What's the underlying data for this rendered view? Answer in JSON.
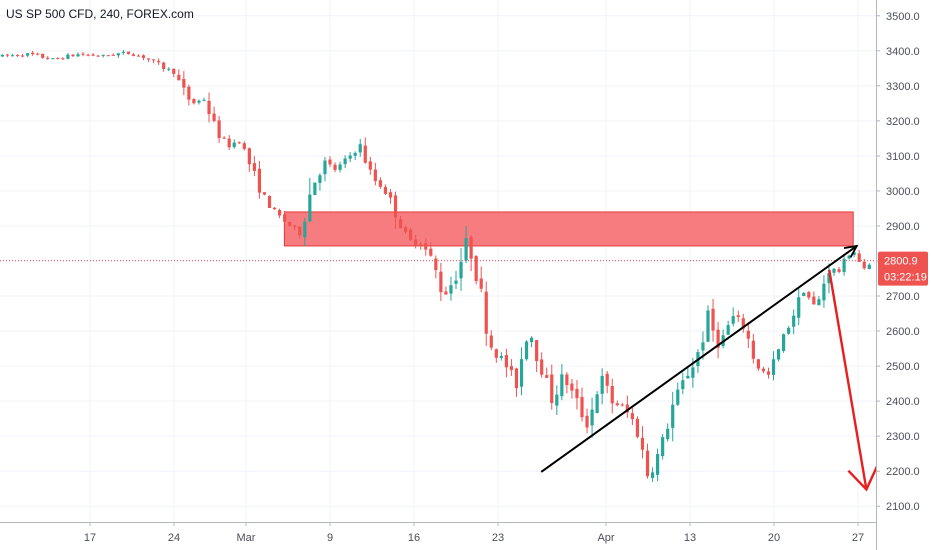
{
  "chart_data": {
    "type": "candlestick",
    "title": "US SP 500 CFD, 240, FOREX.com",
    "y_ticks": [
      3500,
      3400,
      3300,
      3200,
      3100,
      3000,
      2900,
      2800,
      2700,
      2600,
      2500,
      2400,
      2300,
      2200,
      2100
    ],
    "y_tick_labels": [
      "3500.0",
      "3400.0",
      "3300.0",
      "3200.0",
      "3100.0",
      "3000.0",
      "2900.0",
      "2800.0",
      "2700.0",
      "2600.0",
      "2500.0",
      "2400.0",
      "2300.0",
      "2200.0",
      "2100.0"
    ],
    "ylim": [
      2055,
      3545
    ],
    "x_tick_labels": [
      "17",
      "24",
      "Mar",
      "9",
      "16",
      "23",
      "Apr",
      "13",
      "20",
      "27"
    ],
    "x_range_days": [
      -2.5,
      70.5
    ],
    "x_tick_days": [
      5,
      12,
      18,
      25,
      32,
      39,
      48,
      55,
      62,
      69
    ],
    "ohlc_anchors": [
      [
        -2.5,
        3385
      ],
      [
        0,
        3390
      ],
      [
        2,
        3375
      ],
      [
        4,
        3390
      ],
      [
        6,
        3385
      ],
      [
        8,
        3395
      ],
      [
        9.5,
        3382
      ],
      [
        11,
        3355
      ],
      [
        12,
        3340
      ],
      [
        12.7,
        3290
      ],
      [
        13.5,
        3250
      ],
      [
        14.5,
        3262
      ],
      [
        15.5,
        3175
      ],
      [
        16.5,
        3130
      ],
      [
        17.5,
        3145
      ],
      [
        18.5,
        3060
      ],
      [
        19.5,
        2985
      ],
      [
        20.5,
        2935
      ],
      [
        21.5,
        2905
      ],
      [
        22.5,
        2880
      ],
      [
        23.5,
        3015
      ],
      [
        24.5,
        3080
      ],
      [
        25.5,
        3060
      ],
      [
        26.5,
        3095
      ],
      [
        27.5,
        3130
      ],
      [
        28.5,
        3040
      ],
      [
        29.5,
        3005
      ],
      [
        30.5,
        2940
      ],
      [
        31.5,
        2850
      ],
      [
        32.5,
        2860
      ],
      [
        33.5,
        2800
      ],
      [
        34.5,
        2700
      ],
      [
        35.5,
        2760
      ],
      [
        36.5,
        2860
      ],
      [
        37.5,
        2720
      ],
      [
        38.5,
        2550
      ],
      [
        39.5,
        2515
      ],
      [
        40.5,
        2445
      ],
      [
        41.5,
        2620
      ],
      [
        42.5,
        2505
      ],
      [
        43.5,
        2410
      ],
      [
        44.5,
        2470
      ],
      [
        45.5,
        2400
      ],
      [
        46.5,
        2330
      ],
      [
        47.5,
        2470
      ],
      [
        48.5,
        2400
      ],
      [
        49.5,
        2380
      ],
      [
        50.5,
        2330
      ],
      [
        51.5,
        2190
      ],
      [
        52.5,
        2255
      ],
      [
        53.5,
        2380
      ],
      [
        54.5,
        2460
      ],
      [
        55.5,
        2520
      ],
      [
        56.5,
        2630
      ],
      [
        57.5,
        2560
      ],
      [
        58.5,
        2640
      ],
      [
        59.5,
        2615
      ],
      [
        60.5,
        2505
      ],
      [
        61.5,
        2470
      ],
      [
        62.5,
        2555
      ],
      [
        63.5,
        2640
      ],
      [
        64.5,
        2720
      ],
      [
        65.5,
        2660
      ],
      [
        66.5,
        2780
      ],
      [
        67.5,
        2770
      ],
      [
        68.5,
        2840
      ],
      [
        69.5,
        2770
      ],
      [
        70.5,
        2810
      ]
    ],
    "resistance_zone": {
      "low": 2843,
      "high": 2940,
      "x_start_day": 21.2,
      "x_end_day": 68.6
    },
    "trendline": {
      "start_day": 42.6,
      "start_value": 2198,
      "end_day": 68.9,
      "end_value": 2843
    },
    "projection_arrow": {
      "start_day": 66.6,
      "start_value": 2775,
      "end_day": 69.7,
      "end_value": 2148
    },
    "current_price": 2800.9,
    "current_price_label": "2800.9",
    "countdown_label": "03:22:19",
    "colors": {
      "up": "#26a69a",
      "down": "#ef5350",
      "zone_fill": "#f77c80",
      "zone_stroke": "#e53935",
      "trendline": "#000000",
      "projection": "#e91e1e",
      "price_line": "#ef5350",
      "price_label_bg": "#ef5350",
      "axis_text": "#4a4f5c",
      "grid": "#f0f3fa"
    }
  }
}
